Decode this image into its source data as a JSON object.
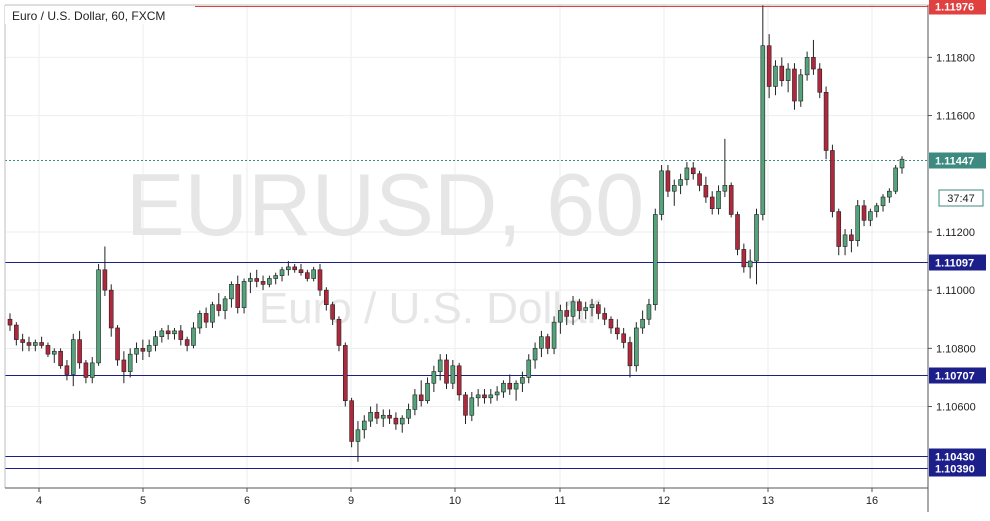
{
  "header": {
    "symbol_title": "Euro / U.S. Dollar, 60, FXCM"
  },
  "watermark": {
    "line1": "EURUSD, 60",
    "line2": "Euro / U.S. Dollar"
  },
  "countdown": "37:47",
  "colors": {
    "up_candle": "#54a37a",
    "down_candle": "#b0283c",
    "wick": "#222222",
    "resistance_line": "#e0403f",
    "support_line": "#1c1f8a",
    "last_price_line": "#3c8a80",
    "grid": "#eeeeee",
    "watermark": "#e6e6e6"
  },
  "chart_data": {
    "type": "candlestick",
    "title": "Euro / U.S. Dollar, 60, FXCM",
    "ylim": [
      1.1032,
      1.1198
    ],
    "y_ticks": [
      "1.11800",
      "1.11600",
      "1.11200",
      "1.11000",
      "1.10800",
      "1.10600"
    ],
    "x_ticks": [
      "4",
      "5",
      "6",
      "9",
      "10",
      "11",
      "12",
      "13",
      "16"
    ],
    "horizontal_lines": [
      {
        "label": "1.11976",
        "value": 1.11976,
        "kind": "resistance"
      },
      {
        "label": "1.11097",
        "value": 1.11097,
        "kind": "support"
      },
      {
        "label": "1.10707",
        "value": 1.10707,
        "kind": "support"
      },
      {
        "label": "1.10430",
        "value": 1.1043,
        "kind": "support"
      },
      {
        "label": "1.10390",
        "value": 1.1039,
        "kind": "support"
      }
    ],
    "last_price": {
      "label": "1.11447",
      "value": 1.11447
    },
    "candles": [
      [
        1.109,
        1.1092,
        1.1086,
        1.1088
      ],
      [
        1.1088,
        1.1089,
        1.1081,
        1.1083
      ],
      [
        1.1083,
        1.1085,
        1.1079,
        1.1082
      ],
      [
        1.1082,
        1.1084,
        1.1079,
        1.1081
      ],
      [
        1.1081,
        1.1083,
        1.1079,
        1.1082
      ],
      [
        1.1082,
        1.1084,
        1.108,
        1.1081
      ],
      [
        1.1081,
        1.1082,
        1.1077,
        1.1078
      ],
      [
        1.1078,
        1.108,
        1.1075,
        1.1079
      ],
      [
        1.1079,
        1.108,
        1.1073,
        1.1074
      ],
      [
        1.1074,
        1.1076,
        1.1069,
        1.1071
      ],
      [
        1.1071,
        1.1085,
        1.1067,
        1.1083
      ],
      [
        1.1083,
        1.1086,
        1.1073,
        1.1075
      ],
      [
        1.1075,
        1.1076,
        1.1068,
        1.107
      ],
      [
        1.107,
        1.1077,
        1.1068,
        1.1075
      ],
      [
        1.1075,
        1.1109,
        1.1074,
        1.1107
      ],
      [
        1.1107,
        1.1115,
        1.1098,
        1.11
      ],
      [
        1.11,
        1.1102,
        1.1084,
        1.1087
      ],
      [
        1.1087,
        1.1088,
        1.1074,
        1.1076
      ],
      [
        1.1076,
        1.1079,
        1.1068,
        1.1072
      ],
      [
        1.1072,
        1.108,
        1.107,
        1.1078
      ],
      [
        1.1078,
        1.1082,
        1.1075,
        1.108
      ],
      [
        1.108,
        1.1083,
        1.1076,
        1.1079
      ],
      [
        1.1079,
        1.1083,
        1.1077,
        1.1081
      ],
      [
        1.1081,
        1.1086,
        1.1079,
        1.1084
      ],
      [
        1.1084,
        1.1087,
        1.1082,
        1.1086
      ],
      [
        1.1086,
        1.1088,
        1.1083,
        1.1085
      ],
      [
        1.1085,
        1.1087,
        1.1083,
        1.1086
      ],
      [
        1.1086,
        1.1088,
        1.1081,
        1.1083
      ],
      [
        1.1083,
        1.1084,
        1.1079,
        1.1081
      ],
      [
        1.1081,
        1.1089,
        1.108,
        1.1087
      ],
      [
        1.1087,
        1.1093,
        1.1085,
        1.1092
      ],
      [
        1.1092,
        1.1094,
        1.1087,
        1.1089
      ],
      [
        1.1089,
        1.1096,
        1.1087,
        1.1095
      ],
      [
        1.1095,
        1.1099,
        1.1091,
        1.1093
      ],
      [
        1.1093,
        1.1098,
        1.109,
        1.1097
      ],
      [
        1.1097,
        1.1103,
        1.1094,
        1.1102
      ],
      [
        1.1102,
        1.1105,
        1.1092,
        1.1094
      ],
      [
        1.1094,
        1.1104,
        1.1092,
        1.1103
      ],
      [
        1.1103,
        1.1106,
        1.1099,
        1.1104
      ],
      [
        1.1104,
        1.1107,
        1.1101,
        1.1103
      ],
      [
        1.1103,
        1.1105,
        1.11,
        1.1102
      ],
      [
        1.1102,
        1.1105,
        1.1101,
        1.1104
      ],
      [
        1.1104,
        1.1106,
        1.1102,
        1.1105
      ],
      [
        1.1105,
        1.1108,
        1.1103,
        1.1107
      ],
      [
        1.1107,
        1.111,
        1.1105,
        1.1108
      ],
      [
        1.1108,
        1.1109,
        1.1106,
        1.1107
      ],
      [
        1.1107,
        1.1109,
        1.1105,
        1.1106
      ],
      [
        1.1106,
        1.1107,
        1.1103,
        1.1104
      ],
      [
        1.1104,
        1.1108,
        1.1103,
        1.1107
      ],
      [
        1.1107,
        1.1109,
        1.1098,
        1.11
      ],
      [
        1.11,
        1.1101,
        1.1093,
        1.1095
      ],
      [
        1.1095,
        1.1096,
        1.1088,
        1.109
      ],
      [
        1.109,
        1.1091,
        1.1079,
        1.1081
      ],
      [
        1.1081,
        1.1082,
        1.106,
        1.1062
      ],
      [
        1.1062,
        1.1063,
        1.1046,
        1.1048
      ],
      [
        1.1048,
        1.1055,
        1.1041,
        1.1052
      ],
      [
        1.1052,
        1.1057,
        1.1049,
        1.1055
      ],
      [
        1.1055,
        1.106,
        1.1053,
        1.1058
      ],
      [
        1.1058,
        1.1061,
        1.1054,
        1.1056
      ],
      [
        1.1056,
        1.1059,
        1.1053,
        1.1057
      ],
      [
        1.1057,
        1.1059,
        1.1054,
        1.1056
      ],
      [
        1.1056,
        1.1058,
        1.1052,
        1.1054
      ],
      [
        1.1054,
        1.1057,
        1.1051,
        1.1056
      ],
      [
        1.1056,
        1.1061,
        1.1054,
        1.1059
      ],
      [
        1.1059,
        1.1066,
        1.1057,
        1.1064
      ],
      [
        1.1064,
        1.1069,
        1.106,
        1.1062
      ],
      [
        1.1062,
        1.107,
        1.1061,
        1.1068
      ],
      [
        1.1068,
        1.1074,
        1.1065,
        1.1072
      ],
      [
        1.1072,
        1.1078,
        1.1069,
        1.1076
      ],
      [
        1.1076,
        1.1078,
        1.1066,
        1.1068
      ],
      [
        1.1068,
        1.1076,
        1.1066,
        1.1074
      ],
      [
        1.1074,
        1.1075,
        1.1062,
        1.1064
      ],
      [
        1.1064,
        1.1065,
        1.1054,
        1.1057
      ],
      [
        1.1057,
        1.1065,
        1.1055,
        1.1063
      ],
      [
        1.1063,
        1.1066,
        1.106,
        1.1064
      ],
      [
        1.1064,
        1.1066,
        1.1061,
        1.1063
      ],
      [
        1.1063,
        1.1066,
        1.1061,
        1.1064
      ],
      [
        1.1064,
        1.1067,
        1.1062,
        1.1065
      ],
      [
        1.1065,
        1.1069,
        1.1063,
        1.1068
      ],
      [
        1.1068,
        1.1071,
        1.1064,
        1.1066
      ],
      [
        1.1066,
        1.1069,
        1.1062,
        1.1068
      ],
      [
        1.1068,
        1.1072,
        1.1065,
        1.107
      ],
      [
        1.107,
        1.1078,
        1.1068,
        1.1076
      ],
      [
        1.1076,
        1.1082,
        1.1073,
        1.108
      ],
      [
        1.108,
        1.1086,
        1.1077,
        1.1084
      ],
      [
        1.1084,
        1.1085,
        1.1078,
        1.108
      ],
      [
        1.108,
        1.1091,
        1.1078,
        1.1089
      ],
      [
        1.1089,
        1.1095,
        1.1085,
        1.1093
      ],
      [
        1.1093,
        1.1096,
        1.1088,
        1.1091
      ],
      [
        1.1091,
        1.1098,
        1.1088,
        1.1096
      ],
      [
        1.1096,
        1.1097,
        1.109,
        1.1093
      ],
      [
        1.1093,
        1.1096,
        1.109,
        1.1094
      ],
      [
        1.1094,
        1.1097,
        1.1091,
        1.1095
      ],
      [
        1.1095,
        1.1096,
        1.109,
        1.1092
      ],
      [
        1.1092,
        1.1094,
        1.1088,
        1.109
      ],
      [
        1.109,
        1.1091,
        1.1085,
        1.1087
      ],
      [
        1.1087,
        1.109,
        1.1083,
        1.1085
      ],
      [
        1.1085,
        1.1087,
        1.108,
        1.1082
      ],
      [
        1.1082,
        1.1084,
        1.107,
        1.1074
      ],
      [
        1.1074,
        1.1089,
        1.1072,
        1.1087
      ],
      [
        1.1087,
        1.1093,
        1.1085,
        1.109
      ],
      [
        1.109,
        1.1097,
        1.1088,
        1.1095
      ],
      [
        1.1095,
        1.1128,
        1.1093,
        1.1126
      ],
      [
        1.1126,
        1.1143,
        1.1124,
        1.1141
      ],
      [
        1.1141,
        1.1143,
        1.1132,
        1.1134
      ],
      [
        1.1134,
        1.1138,
        1.1129,
        1.1136
      ],
      [
        1.1136,
        1.114,
        1.1133,
        1.1138
      ],
      [
        1.1138,
        1.1144,
        1.1136,
        1.1142
      ],
      [
        1.1142,
        1.1144,
        1.1138,
        1.114
      ],
      [
        1.114,
        1.1141,
        1.1134,
        1.1136
      ],
      [
        1.1136,
        1.1139,
        1.113,
        1.1132
      ],
      [
        1.1132,
        1.1134,
        1.1126,
        1.1128
      ],
      [
        1.1128,
        1.1136,
        1.1126,
        1.1134
      ],
      [
        1.1134,
        1.1152,
        1.1132,
        1.1136
      ],
      [
        1.1136,
        1.1137,
        1.1125,
        1.1126
      ],
      [
        1.1126,
        1.1127,
        1.1112,
        1.1114
      ],
      [
        1.1114,
        1.1116,
        1.1106,
        1.1108
      ],
      [
        1.1108,
        1.1114,
        1.1104,
        1.111
      ],
      [
        1.111,
        1.1128,
        1.1102,
        1.1126
      ],
      [
        1.1126,
        1.1198,
        1.1124,
        1.1184
      ],
      [
        1.1184,
        1.1188,
        1.1166,
        1.117
      ],
      [
        1.117,
        1.1179,
        1.1167,
        1.1177
      ],
      [
        1.1177,
        1.118,
        1.117,
        1.1172
      ],
      [
        1.1172,
        1.1178,
        1.1168,
        1.1176
      ],
      [
        1.1176,
        1.1178,
        1.1162,
        1.1165
      ],
      [
        1.1165,
        1.1176,
        1.1163,
        1.1174
      ],
      [
        1.1174,
        1.1182,
        1.1172,
        1.118
      ],
      [
        1.118,
        1.1186,
        1.1174,
        1.1176
      ],
      [
        1.1176,
        1.1178,
        1.1166,
        1.1168
      ],
      [
        1.1168,
        1.117,
        1.1145,
        1.1148
      ],
      [
        1.1148,
        1.115,
        1.1125,
        1.1127
      ],
      [
        1.1127,
        1.1128,
        1.1112,
        1.1115
      ],
      [
        1.1115,
        1.1121,
        1.1112,
        1.1119
      ],
      [
        1.1119,
        1.1121,
        1.1113,
        1.1117
      ],
      [
        1.1117,
        1.1131,
        1.1115,
        1.1129
      ],
      [
        1.1129,
        1.1131,
        1.1122,
        1.1124
      ],
      [
        1.1124,
        1.1128,
        1.1122,
        1.1127
      ],
      [
        1.1127,
        1.113,
        1.1125,
        1.1129
      ],
      [
        1.1129,
        1.1133,
        1.1127,
        1.1132
      ],
      [
        1.1132,
        1.1135,
        1.113,
        1.1134
      ],
      [
        1.1134,
        1.1143,
        1.1133,
        1.1142
      ],
      [
        1.1142,
        1.1146,
        1.114,
        1.1145
      ]
    ]
  }
}
